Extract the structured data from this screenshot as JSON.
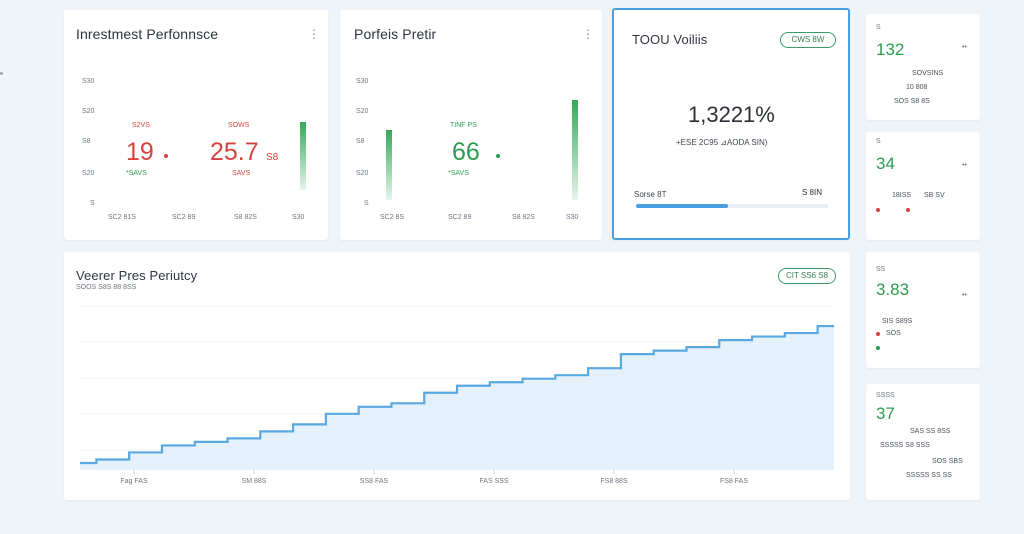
{
  "investment": {
    "title": "Inrestmest Perfonnsce",
    "yticks": [
      "S30",
      "S20",
      "S8",
      "S20",
      "S"
    ],
    "xticks": [
      "SC2 81S",
      "SC2 89",
      "S8 82S",
      "S30"
    ],
    "metric1": {
      "label": "S2VS",
      "value": "19",
      "sub": "*SAVS"
    },
    "metric2": {
      "label": "SOWS",
      "value": "25.7",
      "suffix": "S8",
      "sub": "SAVS"
    }
  },
  "portfolio": {
    "title": "Porfeis Pretir",
    "yticks": [
      "S30",
      "S20",
      "S8",
      "S20",
      "S"
    ],
    "xticks": [
      "SC2 8S",
      "SC2 89",
      "S8 82S",
      "S30"
    ],
    "metric": {
      "label": "TINF PS",
      "value": "66",
      "sub": "*SAVS"
    }
  },
  "total": {
    "title": "TOOU Voiliis",
    "pill": "CWS 8W",
    "value": "1,3221%",
    "sub": "+ESE 2C95 ⊿AODA SIN)",
    "progress_label": "Sorse 8T",
    "progress_value": "S 8IN",
    "progress_fraction": 0.48
  },
  "portfolio_chart": {
    "title": "Veerer Pres Periutcy",
    "subtitle": "SOOS S8S 88 8SS",
    "pill": "CIT SS6 S8",
    "xticks": [
      "Fag FAS",
      "SM 88S",
      "SS8 FAS",
      "FAS SSS",
      "FS8 88S",
      "FS8 FAS"
    ],
    "accent": "#5aa8e0"
  },
  "side": [
    {
      "tag": "S",
      "value": "132",
      "icon": "••",
      "sub1": "SOVSINS",
      "sub2": "10 808",
      "sub3": "SOS S8 8S"
    },
    {
      "tag": "S",
      "value": "34",
      "icon": "••",
      "sub1": "18ISS",
      "sub2": "SB SV"
    },
    {
      "tag": "SS",
      "value": "3.83",
      "icon": "••",
      "sub1": "SIS S89S",
      "sub2": "SOS"
    },
    {
      "tag": "SSSS",
      "value": "37",
      "icon": "••",
      "sub1": "SAS SS 8SS",
      "sub2": "SSSSS S8 SSS",
      "sub3": "SOS SBS",
      "sub4": "SSSSS SS SS"
    }
  ],
  "colors": {
    "red": "#d6433f",
    "green": "#2d9b52",
    "blue": "#4a9ee2"
  },
  "chart_data": {
    "type": "area",
    "x": [
      1,
      2,
      3,
      4,
      5,
      6,
      7,
      8,
      9,
      10,
      11,
      12,
      13,
      14,
      15,
      16,
      17,
      18,
      19,
      20,
      21,
      22,
      23,
      24
    ],
    "series": [
      {
        "values": [
          2,
          3,
          5,
          7,
          8,
          9,
          11,
          13,
          16,
          18,
          19,
          22,
          24,
          25,
          26,
          27,
          29,
          33,
          34,
          35,
          37,
          38,
          39,
          41
        ]
      }
    ]
  }
}
